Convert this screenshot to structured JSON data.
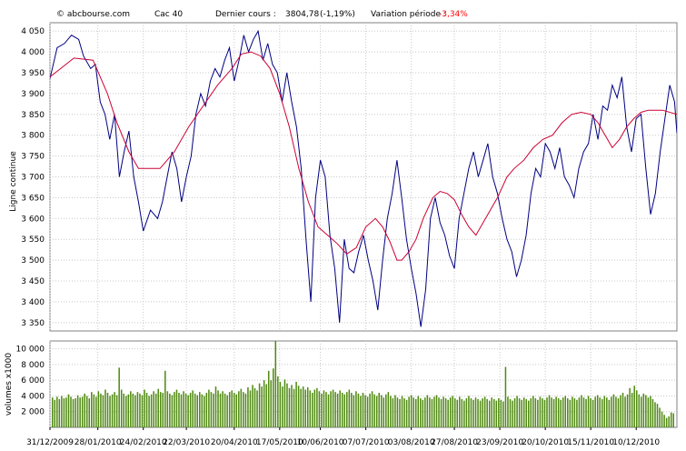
{
  "header": {
    "site": "© abcbourse.com",
    "index": "Cac 40",
    "last_label": "Dernier cours :",
    "last_value": "3804,78",
    "last_change": "(-1,19%)",
    "period_label": "Variation période :",
    "period_value": "-3,34%"
  },
  "colors": {
    "price_line": "#000080",
    "moving_average": "#cc0033",
    "volume_bars": "#4f8a10",
    "negative": "#ff0000",
    "grid": "#c8c8c8",
    "plot_border": "#808080"
  },
  "chart_data": [
    {
      "type": "line",
      "ylabel": "Ligne continue",
      "ylim": [
        3330,
        4070
      ],
      "y_ticks": [
        3350,
        3400,
        3450,
        3500,
        3550,
        3600,
        3650,
        3700,
        3750,
        3800,
        3850,
        3900,
        3950,
        4000,
        4050
      ],
      "y_tick_labels": [
        "3 350",
        "3 400",
        "3 450",
        "3 500",
        "3 550",
        "3 600",
        "3 650",
        "3 700",
        "3 750",
        "3 800",
        "3 850",
        "3 900",
        "3 950",
        "4 000",
        "4 050"
      ],
      "x_tick_labels": [
        "31/12/2009",
        "28/01/2010",
        "24/02/2010",
        "22/03/2010",
        "20/04/2010",
        "17/05/2010",
        "10/06/2010",
        "07/07/2010",
        "03/08/2010",
        "27/08/2010",
        "23/09/2010",
        "20/10/2010",
        "15/11/2010",
        "10/12/2010"
      ],
      "x_domain": [
        0,
        262
      ],
      "x_ticks": [
        0,
        20,
        39,
        57,
        77,
        96,
        113,
        132,
        151,
        169,
        188,
        207,
        226,
        245
      ],
      "grid": true,
      "series": [
        {
          "key": "price",
          "points": [
            [
              0,
              3936
            ],
            [
              3,
              4010
            ],
            [
              6,
              4020
            ],
            [
              9,
              4040
            ],
            [
              12,
              4030
            ],
            [
              14,
              3990
            ],
            [
              17,
              3960
            ],
            [
              19,
              3970
            ],
            [
              21,
              3880
            ],
            [
              23,
              3850
            ],
            [
              25,
              3790
            ],
            [
              27,
              3850
            ],
            [
              29,
              3700
            ],
            [
              31,
              3760
            ],
            [
              33,
              3810
            ],
            [
              35,
              3700
            ],
            [
              37,
              3640
            ],
            [
              39,
              3570
            ],
            [
              42,
              3620
            ],
            [
              45,
              3600
            ],
            [
              47,
              3640
            ],
            [
              49,
              3700
            ],
            [
              51,
              3760
            ],
            [
              53,
              3720
            ],
            [
              55,
              3640
            ],
            [
              57,
              3700
            ],
            [
              59,
              3750
            ],
            [
              61,
              3850
            ],
            [
              63,
              3900
            ],
            [
              65,
              3870
            ],
            [
              67,
              3930
            ],
            [
              69,
              3960
            ],
            [
              71,
              3940
            ],
            [
              73,
              3980
            ],
            [
              75,
              4010
            ],
            [
              77,
              3930
            ],
            [
              79,
              3980
            ],
            [
              81,
              4040
            ],
            [
              83,
              4000
            ],
            [
              85,
              4030
            ],
            [
              87,
              4050
            ],
            [
              89,
              3980
            ],
            [
              91,
              4020
            ],
            [
              93,
              3970
            ],
            [
              95,
              3950
            ],
            [
              97,
              3880
            ],
            [
              99,
              3950
            ],
            [
              101,
              3880
            ],
            [
              103,
              3820
            ],
            [
              105,
              3720
            ],
            [
              107,
              3550
            ],
            [
              109,
              3400
            ],
            [
              111,
              3650
            ],
            [
              113,
              3740
            ],
            [
              115,
              3700
            ],
            [
              117,
              3560
            ],
            [
              119,
              3480
            ],
            [
              121,
              3350
            ],
            [
              123,
              3550
            ],
            [
              125,
              3480
            ],
            [
              127,
              3470
            ],
            [
              129,
              3520
            ],
            [
              131,
              3560
            ],
            [
              133,
              3500
            ],
            [
              135,
              3450
            ],
            [
              137,
              3380
            ],
            [
              139,
              3500
            ],
            [
              141,
              3600
            ],
            [
              143,
              3660
            ],
            [
              145,
              3740
            ],
            [
              147,
              3650
            ],
            [
              149,
              3550
            ],
            [
              151,
              3480
            ],
            [
              153,
              3420
            ],
            [
              155,
              3340
            ],
            [
              157,
              3430
            ],
            [
              159,
              3600
            ],
            [
              161,
              3650
            ],
            [
              163,
              3590
            ],
            [
              165,
              3560
            ],
            [
              167,
              3510
            ],
            [
              169,
              3480
            ],
            [
              171,
              3600
            ],
            [
              173,
              3660
            ],
            [
              175,
              3720
            ],
            [
              177,
              3760
            ],
            [
              179,
              3700
            ],
            [
              181,
              3740
            ],
            [
              183,
              3780
            ],
            [
              185,
              3700
            ],
            [
              187,
              3660
            ],
            [
              189,
              3600
            ],
            [
              191,
              3550
            ],
            [
              193,
              3520
            ],
            [
              195,
              3460
            ],
            [
              197,
              3500
            ],
            [
              199,
              3560
            ],
            [
              201,
              3660
            ],
            [
              203,
              3720
            ],
            [
              205,
              3700
            ],
            [
              207,
              3780
            ],
            [
              209,
              3760
            ],
            [
              211,
              3720
            ],
            [
              213,
              3770
            ],
            [
              215,
              3700
            ],
            [
              217,
              3680
            ],
            [
              219,
              3650
            ],
            [
              221,
              3720
            ],
            [
              223,
              3760
            ],
            [
              225,
              3780
            ],
            [
              227,
              3850
            ],
            [
              229,
              3790
            ],
            [
              231,
              3870
            ],
            [
              233,
              3860
            ],
            [
              235,
              3920
            ],
            [
              237,
              3890
            ],
            [
              239,
              3940
            ],
            [
              241,
              3820
            ],
            [
              243,
              3760
            ],
            [
              245,
              3840
            ],
            [
              247,
              3850
            ],
            [
              249,
              3720
            ],
            [
              251,
              3610
            ],
            [
              253,
              3660
            ],
            [
              255,
              3760
            ],
            [
              257,
              3840
            ],
            [
              259,
              3920
            ],
            [
              261,
              3880
            ],
            [
              262,
              3805
            ]
          ]
        },
        {
          "key": "moving_average",
          "points": [
            [
              0,
              3940
            ],
            [
              10,
              3985
            ],
            [
              18,
              3980
            ],
            [
              24,
              3900
            ],
            [
              28,
              3830
            ],
            [
              33,
              3760
            ],
            [
              37,
              3720
            ],
            [
              42,
              3720
            ],
            [
              46,
              3720
            ],
            [
              52,
              3760
            ],
            [
              58,
              3820
            ],
            [
              64,
              3870
            ],
            [
              70,
              3920
            ],
            [
              76,
              3960
            ],
            [
              80,
              3995
            ],
            [
              84,
              4000
            ],
            [
              88,
              3990
            ],
            [
              92,
              3960
            ],
            [
              96,
              3900
            ],
            [
              100,
              3820
            ],
            [
              104,
              3720
            ],
            [
              108,
              3640
            ],
            [
              112,
              3580
            ],
            [
              116,
              3560
            ],
            [
              120,
              3540
            ],
            [
              124,
              3515
            ],
            [
              128,
              3530
            ],
            [
              132,
              3580
            ],
            [
              136,
              3600
            ],
            [
              139,
              3580
            ],
            [
              142,
              3545
            ],
            [
              145,
              3500
            ],
            [
              147,
              3500
            ],
            [
              150,
              3520
            ],
            [
              153,
              3550
            ],
            [
              156,
              3600
            ],
            [
              160,
              3650
            ],
            [
              163,
              3665
            ],
            [
              166,
              3660
            ],
            [
              169,
              3645
            ],
            [
              172,
              3610
            ],
            [
              175,
              3580
            ],
            [
              178,
              3560
            ],
            [
              181,
              3590
            ],
            [
              184,
              3620
            ],
            [
              187,
              3650
            ],
            [
              191,
              3700
            ],
            [
              194,
              3720
            ],
            [
              198,
              3740
            ],
            [
              202,
              3770
            ],
            [
              206,
              3790
            ],
            [
              210,
              3800
            ],
            [
              214,
              3830
            ],
            [
              218,
              3850
            ],
            [
              222,
              3855
            ],
            [
              226,
              3850
            ],
            [
              229,
              3830
            ],
            [
              232,
              3800
            ],
            [
              235,
              3770
            ],
            [
              238,
              3790
            ],
            [
              241,
              3820
            ],
            [
              244,
              3840
            ],
            [
              247,
              3855
            ],
            [
              250,
              3860
            ],
            [
              253,
              3860
            ],
            [
              256,
              3860
            ],
            [
              262,
              3850
            ]
          ]
        }
      ]
    },
    {
      "type": "bar",
      "ylabel": "volumes x1000",
      "ylim": [
        0,
        11000
      ],
      "y_ticks": [
        2000,
        4000,
        6000,
        8000,
        10000
      ],
      "y_tick_labels": [
        "2 000",
        "4 000",
        "6 000",
        "8 000",
        "10 000"
      ],
      "x_tick_labels": [
        "31/12/2009",
        "28/01/2010",
        "24/02/2010",
        "22/03/2010",
        "20/04/2010",
        "17/05/2010",
        "10/06/2010",
        "07/07/2010",
        "03/08/2010",
        "27/08/2010",
        "23/09/2010",
        "20/10/2010",
        "15/11/2010",
        "10/12/2010"
      ],
      "x_domain": [
        0,
        262
      ],
      "grid": true,
      "values": [
        3800,
        3500,
        3900,
        3600,
        4000,
        3700,
        3800,
        4200,
        3900,
        3600,
        3700,
        4100,
        3800,
        3900,
        4300,
        4000,
        3700,
        4500,
        4200,
        3900,
        4600,
        4300,
        4100,
        4800,
        4400,
        4000,
        4200,
        4500,
        4100,
        7600,
        4800,
        4300,
        4000,
        4200,
        4600,
        4300,
        4100,
        4500,
        4300,
        4100,
        4800,
        4400,
        4000,
        4200,
        4600,
        4300,
        4900,
        4500,
        4400,
        7200,
        4600,
        4300,
        4100,
        4500,
        4800,
        4400,
        4200,
        4600,
        4300,
        4100,
        4400,
        4700,
        4300,
        4100,
        4500,
        4200,
        4000,
        4400,
        4800,
        4500,
        4300,
        5200,
        4700,
        4300,
        4600,
        4300,
        4100,
        4500,
        4700,
        4400,
        4200,
        4600,
        4900,
        4500,
        4300,
        5100,
        4700,
        5400,
        5000,
        4700,
        5600,
        5200,
        6000,
        5500,
        7200,
        6000,
        7500,
        11000,
        6500,
        5800,
        5200,
        6100,
        5600,
        5000,
        5400,
        4900,
        5800,
        5300,
        4900,
        5200,
        4800,
        5100,
        4700,
        4400,
        4800,
        5000,
        4600,
        4300,
        4700,
        4500,
        4200,
        4600,
        4800,
        4500,
        4300,
        4700,
        4400,
        4200,
        4500,
        4800,
        4400,
        4100,
        4600,
        4300,
        4000,
        4400,
        4100,
        3900,
        4300,
        4600,
        4200,
        4000,
        4400,
        4100,
        3800,
        4200,
        4500,
        4000,
        3700,
        4100,
        3800,
        3600,
        4000,
        3700,
        3500,
        3900,
        4100,
        3800,
        3600,
        4000,
        3700,
        3500,
        3800,
        4100,
        3800,
        3600,
        3900,
        4100,
        3800,
        3600,
        3900,
        3700,
        3500,
        3800,
        4000,
        3700,
        3500,
        3900,
        3600,
        3400,
        3700,
        4000,
        3700,
        3500,
        3800,
        3600,
        3400,
        3700,
        3900,
        3600,
        3400,
        3800,
        3600,
        3400,
        3700,
        3500,
        3300,
        7700,
        3900,
        3600,
        3400,
        3700,
        4000,
        3700,
        3500,
        3800,
        3600,
        3400,
        3700,
        4000,
        3700,
        3500,
        3900,
        3700,
        3500,
        3800,
        4100,
        3800,
        3600,
        3900,
        3700,
        3500,
        3800,
        4000,
        3700,
        3500,
        3900,
        3700,
        3500,
        3800,
        4100,
        3800,
        3600,
        4000,
        3700,
        3500,
        3900,
        4100,
        3800,
        3600,
        4000,
        3800,
        3500,
        3900,
        4200,
        3900,
        3700,
        4100,
        4400,
        3900,
        4200,
        5000,
        4400,
        5300,
        4700,
        4200,
        3900,
        4300,
        4100,
        3800,
        4000,
        3600,
        3200,
        3000,
        2500,
        2000,
        1600,
        1200,
        1400,
        1900,
        1800
      ]
    }
  ]
}
